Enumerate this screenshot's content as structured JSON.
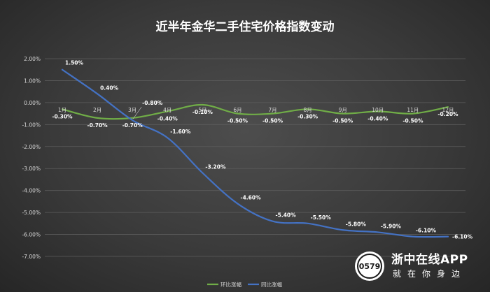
{
  "chart_data": {
    "type": "line",
    "title": "近半年金华二手住宅价格指数变动",
    "categories": [
      "1月",
      "2月",
      "3月",
      "4月",
      "5月",
      "6月",
      "7月",
      "8月",
      "9月",
      "10月",
      "11月",
      "12月"
    ],
    "y_ticks": [
      "2.00%",
      "1.00%",
      "0.00%",
      "-1.00%",
      "-2.00%",
      "-3.00%",
      "-4.00%",
      "-5.00%",
      "-6.00%",
      "-7.00%"
    ],
    "ylim": [
      -7,
      2
    ],
    "grid": "horizontal",
    "legend_position": "bottom",
    "series": [
      {
        "name": "环比涨幅",
        "color": "#70ad47",
        "values": [
          -0.3,
          -0.7,
          -0.7,
          -0.4,
          -0.1,
          -0.5,
          -0.5,
          -0.3,
          -0.5,
          -0.4,
          -0.5,
          -0.2
        ],
        "labels": [
          "-0.30%",
          "-0.70%",
          "-0.70%",
          "-0.40%",
          "-0.10%",
          "-0.50%",
          "-0.50%",
          "-0.30%",
          "-0.50%",
          "-0.40%",
          "-0.50%",
          "-0.20%"
        ]
      },
      {
        "name": "同比涨幅",
        "color": "#4472c4",
        "values": [
          1.5,
          0.4,
          -0.8,
          -1.6,
          -3.2,
          -4.6,
          -5.4,
          -5.5,
          -5.8,
          -5.9,
          -6.1,
          -6.1
        ],
        "labels": [
          "1.50%",
          "0.40%",
          "-0.80%",
          "-1.60%",
          "-3.20%",
          "-4.60%",
          "-5.40%",
          "-5.50%",
          "-5.80%",
          "-5.90%",
          "-6.10%",
          "-6.10%"
        ]
      }
    ]
  },
  "watermark": {
    "logo_text": "0579",
    "name": "浙中在线APP",
    "slogan": "就在你身边"
  }
}
